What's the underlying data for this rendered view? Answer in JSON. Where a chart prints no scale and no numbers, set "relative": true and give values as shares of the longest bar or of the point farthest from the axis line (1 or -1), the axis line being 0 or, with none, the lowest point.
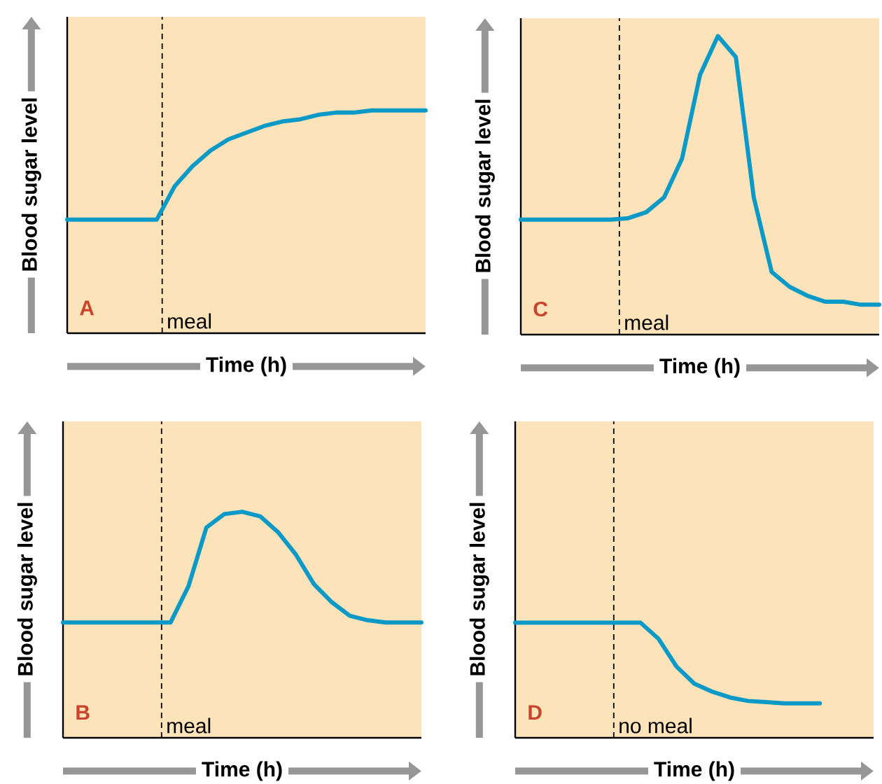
{
  "chart_data": [
    {
      "type": "line",
      "title": "A",
      "xlabel": "Time (h)",
      "ylabel": "Blood sugar level",
      "relative": true,
      "categories": [
        null,
        null,
        null,
        null,
        null,
        null,
        null,
        null,
        null,
        null,
        null,
        null,
        null,
        null,
        null,
        null,
        null,
        null,
        null,
        null,
        null
      ],
      "series": [
        {
          "color": "#0b9ac8",
          "values": [
            0.51,
            0.51,
            0.51,
            0.51,
            0.51,
            0.51,
            0.66,
            0.75,
            0.82,
            0.87,
            0.9,
            0.93,
            0.95,
            0.96,
            0.98,
            0.99,
            0.99,
            1,
            1,
            1,
            1
          ]
        }
      ],
      "annotations": [
        "meal"
      ]
    },
    {
      "type": "line",
      "title": "C",
      "xlabel": "Time (h)",
      "ylabel": "Blood sugar level",
      "relative": true,
      "categories": [
        null,
        null,
        null,
        null,
        null,
        null,
        null,
        null,
        null,
        null,
        null,
        null,
        null,
        null,
        null,
        null,
        null,
        null,
        null,
        null,
        null
      ],
      "series": [
        {
          "color": "#0b9ac8",
          "values": [
            0.385,
            0.385,
            0.385,
            0.385,
            0.385,
            0.385,
            0.39,
            0.41,
            0.46,
            0.59,
            0.87,
            1,
            0.93,
            0.46,
            0.21,
            0.16,
            0.13,
            0.11,
            0.11,
            0.1,
            0.1
          ]
        }
      ],
      "annotations": [
        "meal"
      ]
    },
    {
      "type": "line",
      "title": "B",
      "xlabel": "Time (h)",
      "ylabel": "Blood sugar level",
      "relative": true,
      "categories": [
        null,
        null,
        null,
        null,
        null,
        null,
        null,
        null,
        null,
        null,
        null,
        null,
        null,
        null,
        null,
        null,
        null,
        null,
        null,
        null,
        null
      ],
      "series": [
        {
          "color": "#0b9ac8",
          "values": [
            0.51,
            0.51,
            0.51,
            0.51,
            0.51,
            0.51,
            0.51,
            0.67,
            0.93,
            0.99,
            1,
            0.98,
            0.91,
            0.81,
            0.68,
            0.6,
            0.54,
            0.52,
            0.51,
            0.51,
            0.51
          ]
        }
      ],
      "annotations": [
        "meal"
      ]
    },
    {
      "type": "line",
      "title": "D",
      "xlabel": "Time (h)",
      "ylabel": "Blood sugar level",
      "relative": true,
      "categories": [
        null,
        null,
        null,
        null,
        null,
        null,
        null,
        null,
        null,
        null,
        null,
        null,
        null,
        null,
        null,
        null,
        null,
        null,
        null,
        null,
        null
      ],
      "series": [
        {
          "color": "#0b9ac8",
          "values": [
            1,
            1,
            1,
            1,
            1,
            1,
            1,
            1,
            0.86,
            0.62,
            0.47,
            0.4,
            0.35,
            0.32,
            0.31,
            0.3,
            0.3,
            0.3,
            null,
            null,
            null
          ]
        }
      ],
      "annotations": [
        "no meal"
      ]
    }
  ]
}
